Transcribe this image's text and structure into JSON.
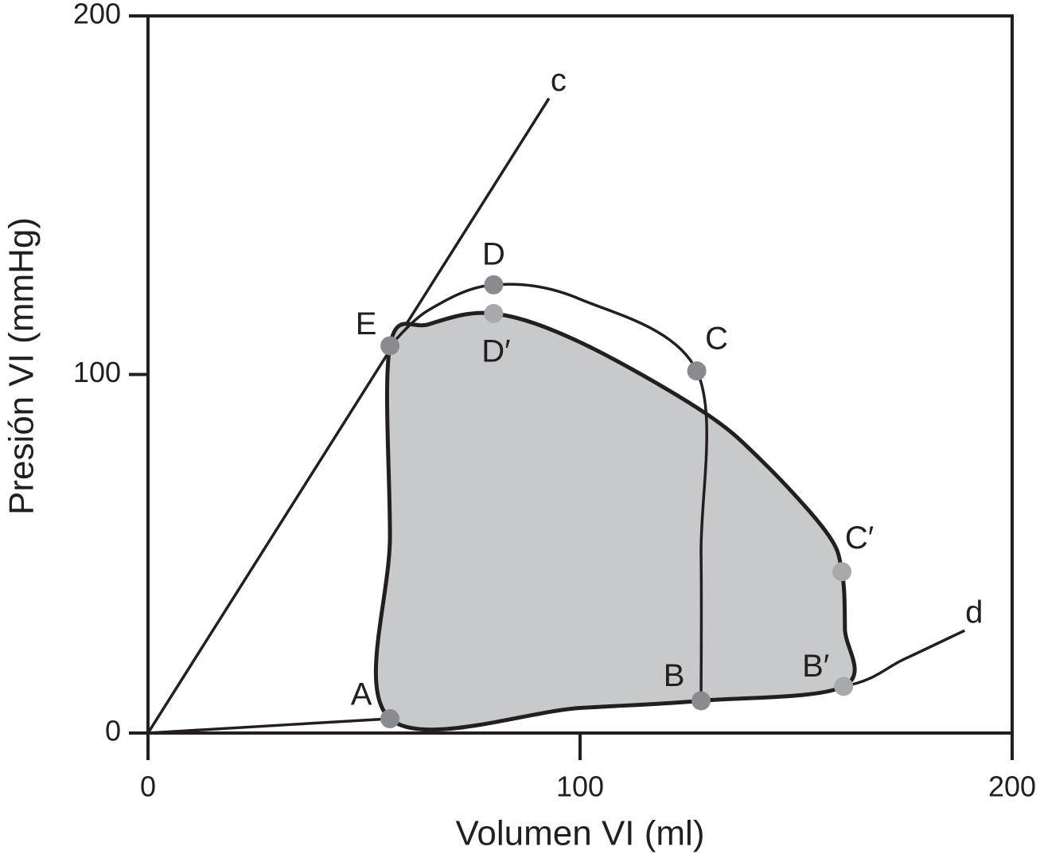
{
  "chart_data": {
    "type": "line",
    "xlabel": "Volumen VI (ml)",
    "ylabel": "Presión VI (mmHg)",
    "xlim": [
      0,
      200
    ],
    "ylim": [
      0,
      200
    ],
    "xticks": [
      0,
      100,
      200
    ],
    "yticks": [
      0,
      100,
      200
    ],
    "series": [
      {
        "name": "c",
        "color": "#231f20",
        "x": [
          0,
          92.8
        ],
        "values": [
          0,
          177
        ]
      },
      {
        "name": "d",
        "color": "#231f20",
        "x": [
          0,
          56,
          100,
          128,
          161,
          175,
          189
        ],
        "values": [
          0,
          4,
          7,
          9,
          13,
          20.6,
          28.6
        ]
      },
      {
        "color": "#231f20",
        "fill": "#c8c9cb",
        "closed": true,
        "x": [
          56,
          56,
          56,
          65,
          80,
          100,
          128,
          142,
          157,
          160.6,
          161.3,
          161,
          128,
          100
        ],
        "values": [
          4,
          55,
          108,
          114,
          117,
          109,
          90,
          76,
          56,
          45,
          29,
          13,
          9,
          7
        ]
      },
      {
        "color": "#231f20",
        "x": [
          56,
          65,
          80,
          100,
          127,
          128,
          128
        ],
        "values": [
          108,
          118,
          125,
          121,
          101,
          50,
          9
        ]
      }
    ],
    "points": [
      {
        "label": "A",
        "x": 56,
        "y": 4,
        "color": "#8a8b8e"
      },
      {
        "label": "B",
        "x": 128,
        "y": 9,
        "color": "#8a8b8e"
      },
      {
        "label": "C",
        "x": 127,
        "y": 101,
        "color": "#8a8b8e"
      },
      {
        "label": "D",
        "x": 80,
        "y": 125,
        "color": "#8a8b8e"
      },
      {
        "label": "E",
        "x": 56,
        "y": 108,
        "color": "#8a8b8e"
      },
      {
        "label": "D′",
        "x": 80,
        "y": 117,
        "color": "#a7a9ac"
      },
      {
        "label": "C′",
        "x": 160.6,
        "y": 45,
        "color": "#a7a9ac"
      },
      {
        "label": "B′",
        "x": 161,
        "y": 13,
        "color": "#a7a9ac"
      }
    ]
  }
}
